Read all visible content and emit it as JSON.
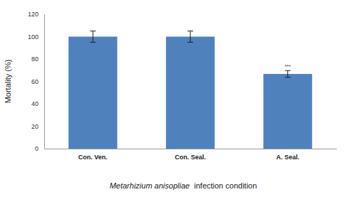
{
  "chart_data": {
    "type": "bar",
    "categories": [
      "Con. Ven.",
      "Con. Seal.",
      "A. Seal."
    ],
    "values": [
      100,
      100,
      66.7
    ],
    "errors": [
      5,
      5,
      3
    ],
    "significance": [
      null,
      null,
      "***"
    ],
    "color": "#4f81bd",
    "ylabel": "Mortality (%)",
    "xlabel": "Metarhizium anisopliae  infection condition",
    "ylim": [
      0,
      120
    ],
    "yticks": [
      0,
      20,
      40,
      60,
      80,
      100,
      120
    ],
    "grid": false
  }
}
